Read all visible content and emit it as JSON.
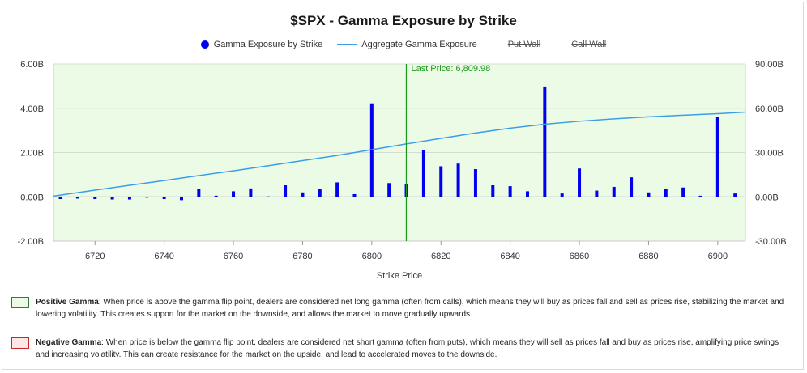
{
  "title": "$SPX - Gamma Exposure by Strike",
  "legend": {
    "bars": "Gamma Exposure by Strike",
    "line": "Aggregate Gamma Exposure",
    "put_wall": "Put Wall",
    "call_wall": "Call Wall"
  },
  "last_price_label": "Last Price: 6,809.98",
  "notes": {
    "positive_title": "Positive Gamma",
    "positive_text": ": When price is above the gamma flip point, dealers are considered net long gamma (often from calls), which means they will buy as prices fall and sell as prices rise, stabilizing the market and lowering volatility. This creates support for the market on the downside, and allows the market to move gradually upwards.",
    "negative_title": "Negative Gamma",
    "negative_text": ": When price is below the gamma flip point, dealers are considered net short gamma (often from puts), which means they will sell as prices fall and buy as prices rise, amplifying price swings and increasing volatility. This can create resistance for the market on the upside, and lead to accelerated moves to the downside."
  },
  "colors": {
    "bars": "#0000ee",
    "line": "#3a9ee8",
    "last_price": "#1a9a1a",
    "positive_zone": "#ecfbe6",
    "negative_zone": "#fde6e6"
  },
  "chart_data": {
    "type": "bar",
    "xlabel": "Strike Price",
    "ylabel": "",
    "xlim": [
      6708,
      6908
    ],
    "ylim": [
      -2.0,
      6.0
    ],
    "y2lim": [
      -30.0,
      90.0
    ],
    "x_ticks": [
      "6720",
      "6740",
      "6760",
      "6780",
      "6800",
      "6820",
      "6840",
      "6860",
      "6880",
      "6900"
    ],
    "y_ticks": [
      "-2.00B",
      "0.00B",
      "2.00B",
      "4.00B",
      "6.00B"
    ],
    "y2_ticks": [
      "-30.00B",
      "0.00B",
      "30.00B",
      "60.00B",
      "90.00B"
    ],
    "last_price": 6809.98,
    "series": [
      {
        "name": "Gamma Exposure by Strike",
        "type": "bar",
        "axis": "left",
        "points": [
          [
            6710,
            -0.1
          ],
          [
            6715,
            -0.08
          ],
          [
            6720,
            -0.1
          ],
          [
            6725,
            -0.12
          ],
          [
            6730,
            -0.12
          ],
          [
            6735,
            -0.04
          ],
          [
            6740,
            -0.1
          ],
          [
            6745,
            -0.15
          ],
          [
            6750,
            0.35
          ],
          [
            6755,
            0.05
          ],
          [
            6760,
            0.25
          ],
          [
            6765,
            0.38
          ],
          [
            6770,
            0.02
          ],
          [
            6775,
            0.52
          ],
          [
            6780,
            0.2
          ],
          [
            6785,
            0.35
          ],
          [
            6790,
            0.65
          ],
          [
            6795,
            0.12
          ],
          [
            6800,
            4.22
          ],
          [
            6805,
            0.62
          ],
          [
            6810,
            0.58
          ],
          [
            6815,
            2.12
          ],
          [
            6820,
            1.38
          ],
          [
            6825,
            1.5
          ],
          [
            6830,
            1.25
          ],
          [
            6835,
            0.52
          ],
          [
            6840,
            0.48
          ],
          [
            6845,
            0.25
          ],
          [
            6850,
            4.98
          ],
          [
            6855,
            0.15
          ],
          [
            6860,
            1.28
          ],
          [
            6865,
            0.28
          ],
          [
            6870,
            0.45
          ],
          [
            6875,
            0.88
          ],
          [
            6880,
            0.2
          ],
          [
            6885,
            0.35
          ],
          [
            6890,
            0.42
          ],
          [
            6895,
            0.05
          ],
          [
            6900,
            3.6
          ],
          [
            6905,
            0.15
          ]
        ]
      },
      {
        "name": "Aggregate Gamma Exposure",
        "type": "line",
        "axis": "right",
        "points": [
          [
            6708,
            0.5
          ],
          [
            6720,
            4.5
          ],
          [
            6730,
            7.8
          ],
          [
            6740,
            11.0
          ],
          [
            6750,
            14.4
          ],
          [
            6760,
            17.6
          ],
          [
            6770,
            21.0
          ],
          [
            6780,
            24.5
          ],
          [
            6790,
            28.0
          ],
          [
            6800,
            31.9
          ],
          [
            6810,
            35.8
          ],
          [
            6820,
            39.6
          ],
          [
            6830,
            43.2
          ],
          [
            6840,
            46.5
          ],
          [
            6850,
            49.2
          ],
          [
            6860,
            51.2
          ],
          [
            6870,
            52.8
          ],
          [
            6880,
            54.2
          ],
          [
            6890,
            55.3
          ],
          [
            6900,
            56.3
          ],
          [
            6908,
            57.4
          ]
        ]
      }
    ]
  }
}
